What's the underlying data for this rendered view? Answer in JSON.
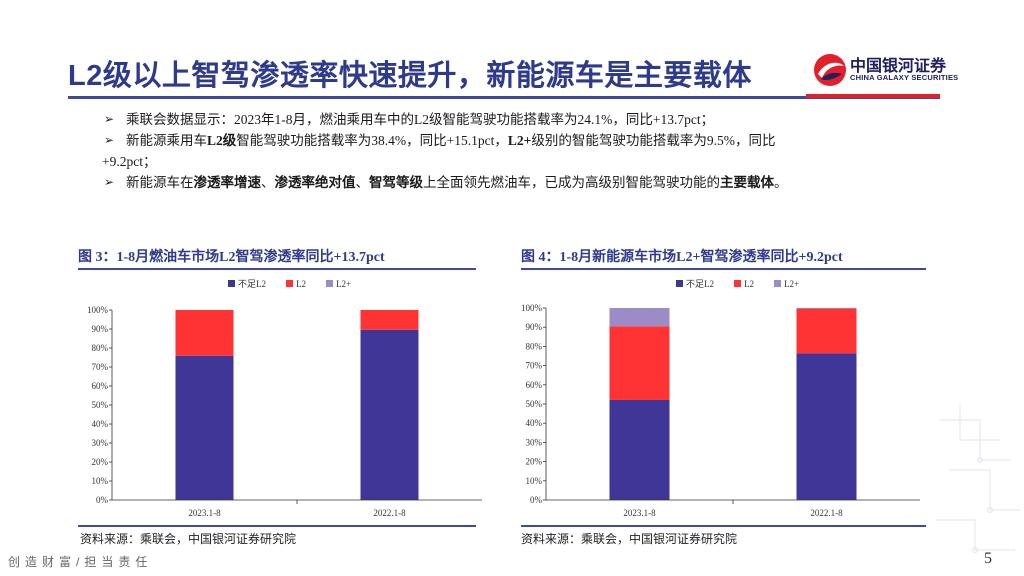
{
  "title": "L2级以上智驾渗透率快速提升，新能源车是主要载体",
  "logo": {
    "cn": "中国银河证券",
    "en": "CHINA GALAXY SECURITIES",
    "color_red": "#e41e2b",
    "color_navy": "#1f2060"
  },
  "bullets": [
    {
      "marker": "➢",
      "parts": [
        {
          "text": "乘联会数据显示：2023年1-8月，燃油乘用车中的L2级智能驾驶功能搭载率为24.1%，同比+13.7pct；",
          "bold": false
        }
      ]
    },
    {
      "marker": "➢",
      "parts": [
        {
          "text": "新能源乘用车",
          "bold": false
        },
        {
          "text": "L2级",
          "bold": true
        },
        {
          "text": "智能驾驶功能搭载率为38.4%，同比+15.1pct，",
          "bold": false
        },
        {
          "text": "L2+",
          "bold": true
        },
        {
          "text": "级别的智能驾驶功能搭载率为9.5%，同比",
          "bold": false
        }
      ],
      "continuation": "+9.2pct；"
    },
    {
      "marker": "➢",
      "parts": [
        {
          "text": "新能源车在",
          "bold": false
        },
        {
          "text": "渗透率增速",
          "bold": true
        },
        {
          "text": "、",
          "bold": false
        },
        {
          "text": "渗透率绝对值",
          "bold": true
        },
        {
          "text": "、",
          "bold": false
        },
        {
          "text": "智驾等级",
          "bold": true
        },
        {
          "text": "上全面领先燃油车，已成为高级别智能驾驶功能的",
          "bold": false
        },
        {
          "text": "主要载体",
          "bold": true
        },
        {
          "text": "。",
          "bold": false
        }
      ]
    }
  ],
  "figures": [
    {
      "title": "图 3：1-8月燃油车市场L2智驾渗透率同比+13.7pct",
      "source": "资料来源：乘联会，中国银河证券研究院"
    },
    {
      "title": "图 4：1-8月新能源车市场L2+智驾渗透率同比+9.2pct",
      "source": "资料来源：乘联会，中国银河证券研究院"
    }
  ],
  "chart_data": [
    {
      "type": "bar",
      "stacked": true,
      "categories": [
        "2023.1-8",
        "2022.1-8"
      ],
      "series": [
        {
          "name": "不足L2",
          "values": [
            75.9,
            89.6
          ],
          "color": "#3f3697"
        },
        {
          "name": "L2",
          "values": [
            24.1,
            10.4
          ],
          "color": "#ff3333"
        },
        {
          "name": "L2+",
          "values": [
            0,
            0
          ],
          "color": "#9b8cc7"
        }
      ],
      "yticks": [
        "0%",
        "10%",
        "20%",
        "30%",
        "40%",
        "50%",
        "60%",
        "70%",
        "80%",
        "90%",
        "100%"
      ],
      "ylim": [
        0,
        100
      ],
      "legend": "top-center",
      "grid": false
    },
    {
      "type": "bar",
      "stacked": true,
      "categories": [
        "2023.1-8",
        "2022.1-8"
      ],
      "series": [
        {
          "name": "不足L2",
          "values": [
            52.1,
            76.4
          ],
          "color": "#3f3697"
        },
        {
          "name": "L2",
          "values": [
            38.4,
            23.3
          ],
          "color": "#ff3333"
        },
        {
          "name": "L2+",
          "values": [
            9.5,
            0.3
          ],
          "color": "#9b8cc7"
        }
      ],
      "yticks": [
        "0%",
        "10%",
        "20%",
        "30%",
        "40%",
        "50%",
        "60%",
        "70%",
        "80%",
        "90%",
        "100%"
      ],
      "ylim": [
        0,
        100
      ],
      "legend": "top-center",
      "grid": false
    }
  ],
  "footer": "创造财富/担当责任",
  "page_number": "5"
}
